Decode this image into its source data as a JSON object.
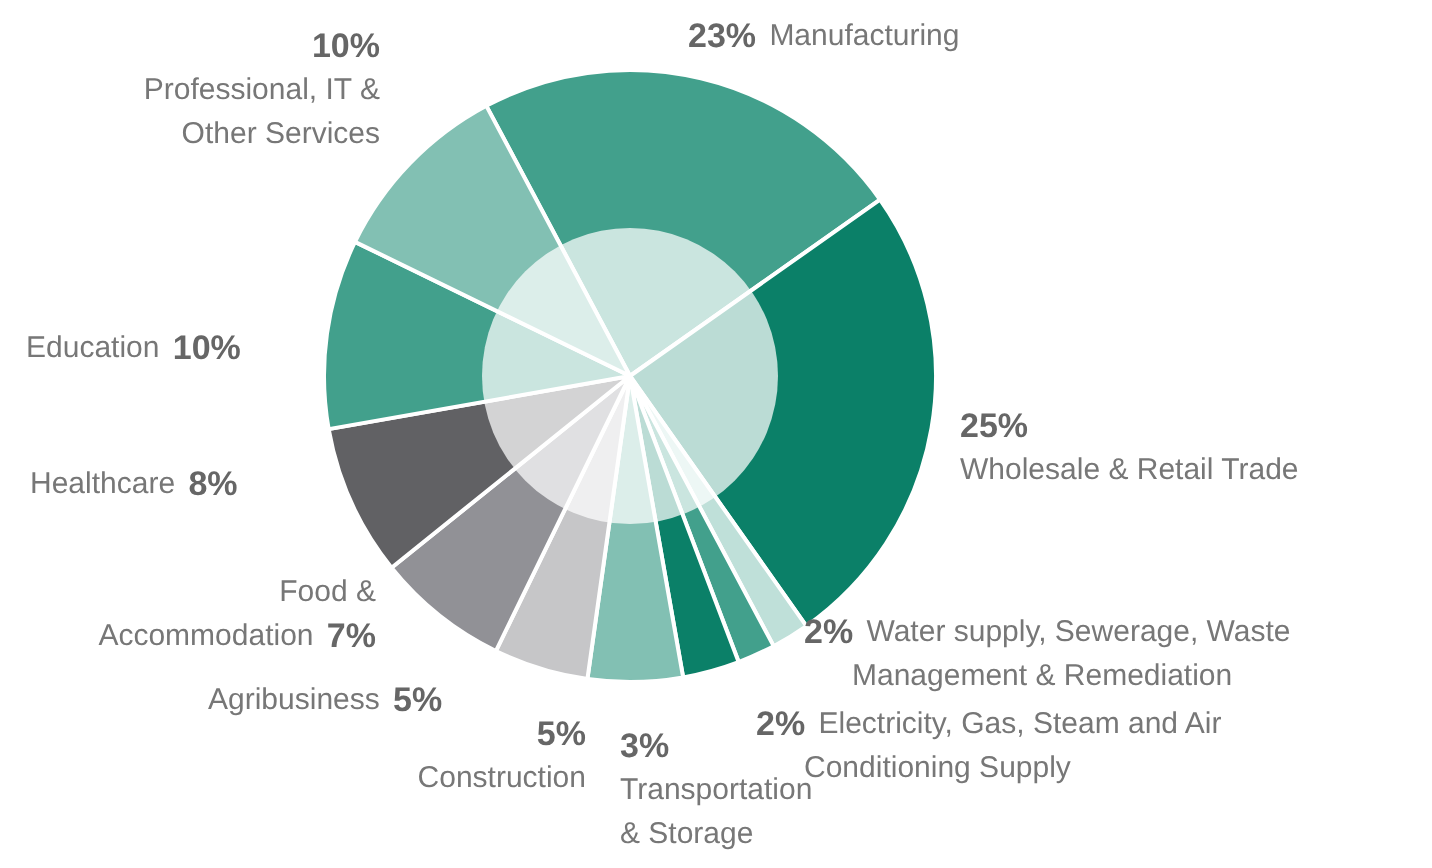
{
  "chart_data": {
    "type": "donut",
    "value_labels": [
      "23%",
      "25%",
      "2%",
      "2%",
      "3%",
      "5%",
      "5%",
      "7%",
      "8%",
      "10%",
      "10%"
    ],
    "categories": [
      "Manufacturing",
      "Wholesale & Retail Trade",
      "Water supply, Sewerage, Waste Management & Remediation",
      "Electricity, Gas, Steam and Air Conditioning Supply",
      "Transportation & Storage",
      "Construction",
      "Agribusiness",
      "Food & Accommodation",
      "Healthcare",
      "Education",
      "Professional, IT & Other Services"
    ],
    "values": [
      23,
      25,
      2,
      2,
      3,
      5,
      5,
      7,
      8,
      10,
      10
    ],
    "colors": [
      "#42a08c",
      "#0b8068",
      "#bfe0d9",
      "#42a08c",
      "#0b8068",
      "#82c0b3",
      "#c6c6c8",
      "#919196",
      "#616164",
      "#42a08c",
      "#82c0b3"
    ],
    "data_labels": true
  }
}
